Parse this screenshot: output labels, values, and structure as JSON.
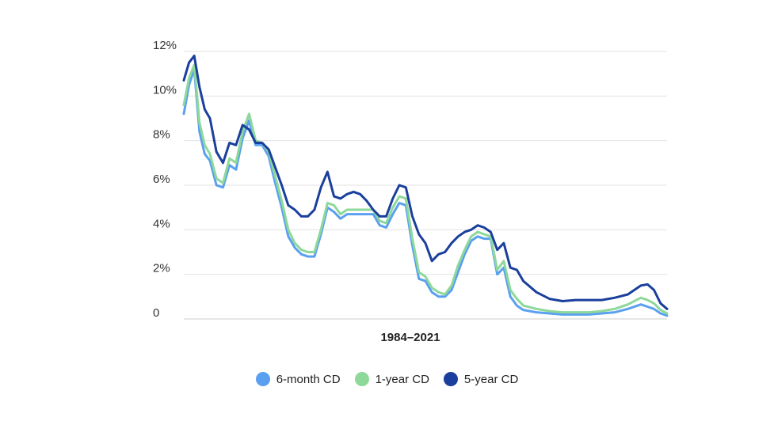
{
  "chart_data": {
    "type": "line",
    "title": "",
    "xlabel": "1984–2021",
    "ylabel": "",
    "ylim": [
      0,
      12
    ],
    "yticks": [
      "0",
      "2%",
      "4%",
      "6%",
      "8%",
      "10%",
      "12%"
    ],
    "grid": true,
    "legend_position": "bottom",
    "x": [
      1984.0,
      1984.4,
      1984.8,
      1985.2,
      1985.6,
      1986.0,
      1986.5,
      1987.0,
      1987.5,
      1988.0,
      1988.5,
      1989.0,
      1989.5,
      1990.0,
      1990.5,
      1991.0,
      1991.5,
      1992.0,
      1992.5,
      1993.0,
      1993.5,
      1994.0,
      1994.5,
      1995.0,
      1995.5,
      1996.0,
      1996.5,
      1997.0,
      1997.5,
      1998.0,
      1998.5,
      1999.0,
      1999.5,
      2000.0,
      2000.5,
      2001.0,
      2001.5,
      2002.0,
      2002.5,
      2003.0,
      2003.5,
      2004.0,
      2004.5,
      2005.0,
      2005.5,
      2006.0,
      2006.5,
      2007.0,
      2007.5,
      2008.0,
      2008.5,
      2009.0,
      2009.5,
      2010.0,
      2011.0,
      2012.0,
      2013.0,
      2014.0,
      2015.0,
      2016.0,
      2017.0,
      2018.0,
      2019.0,
      2019.5,
      2020.0,
      2020.5,
      2021.0
    ],
    "series": [
      {
        "name": "6-month CD",
        "color": "#5aa0f0",
        "values": [
          9.2,
          10.5,
          11.2,
          8.4,
          7.4,
          7.1,
          6.0,
          5.9,
          6.9,
          6.7,
          8.1,
          8.9,
          7.8,
          7.8,
          7.3,
          6.1,
          5.0,
          3.7,
          3.2,
          2.9,
          2.8,
          2.8,
          3.8,
          5.0,
          4.8,
          4.5,
          4.7,
          4.7,
          4.7,
          4.7,
          4.7,
          4.2,
          4.1,
          4.7,
          5.2,
          5.1,
          3.3,
          1.8,
          1.7,
          1.2,
          1.0,
          1.0,
          1.3,
          2.1,
          2.9,
          3.5,
          3.7,
          3.6,
          3.6,
          2.0,
          2.3,
          1.0,
          0.6,
          0.4,
          0.3,
          0.25,
          0.2,
          0.2,
          0.2,
          0.25,
          0.3,
          0.45,
          0.65,
          0.55,
          0.45,
          0.25,
          0.15
        ]
      },
      {
        "name": "1-year CD",
        "color": "#8ed89a",
        "values": [
          9.6,
          10.8,
          11.4,
          8.8,
          7.8,
          7.4,
          6.3,
          6.1,
          7.2,
          7.0,
          8.4,
          9.2,
          8.0,
          7.9,
          7.5,
          6.4,
          5.3,
          4.0,
          3.4,
          3.1,
          3.0,
          3.0,
          4.0,
          5.2,
          5.1,
          4.7,
          4.9,
          4.9,
          4.9,
          4.9,
          4.9,
          4.4,
          4.3,
          5.0,
          5.5,
          5.4,
          3.6,
          2.1,
          1.9,
          1.4,
          1.2,
          1.1,
          1.5,
          2.4,
          3.1,
          3.7,
          3.9,
          3.8,
          3.7,
          2.2,
          2.6,
          1.3,
          0.9,
          0.6,
          0.45,
          0.35,
          0.3,
          0.3,
          0.3,
          0.35,
          0.45,
          0.65,
          0.95,
          0.85,
          0.7,
          0.4,
          0.25
        ]
      },
      {
        "name": "5-year CD",
        "color": "#1a3f9c",
        "values": [
          10.7,
          11.5,
          11.8,
          10.4,
          9.4,
          9.0,
          7.5,
          7.0,
          7.9,
          7.8,
          8.7,
          8.5,
          7.9,
          7.9,
          7.6,
          6.8,
          6.0,
          5.1,
          4.9,
          4.6,
          4.6,
          4.9,
          5.9,
          6.6,
          5.5,
          5.4,
          5.6,
          5.7,
          5.6,
          5.3,
          4.9,
          4.6,
          4.6,
          5.4,
          6.0,
          5.9,
          4.6,
          3.8,
          3.4,
          2.6,
          2.9,
          3.0,
          3.4,
          3.7,
          3.9,
          4.0,
          4.2,
          4.1,
          3.9,
          3.1,
          3.4,
          2.3,
          2.2,
          1.7,
          1.2,
          0.9,
          0.8,
          0.85,
          0.85,
          0.85,
          0.95,
          1.1,
          1.5,
          1.55,
          1.3,
          0.7,
          0.45
        ]
      }
    ]
  }
}
